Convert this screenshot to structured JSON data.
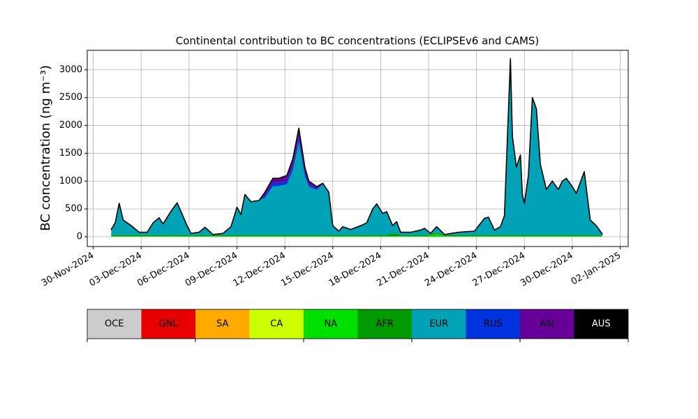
{
  "chart_data": {
    "type": "stacked_area",
    "title": "Continental contribution to BC concentrations (ECLIPSEv6 and CAMS)",
    "y_label": "BC concentration (ng m⁻³)",
    "xlim": [
      "2024-11-29T15:00",
      "2025-01-02T12:00"
    ],
    "ylim": [
      -176,
      3350
    ],
    "grid": true,
    "xticks": [
      {
        "value": "2024-11-30T00:00",
        "label": "30-Nov-2024"
      },
      {
        "value": "2024-12-03T00:00",
        "label": "03-Dec-2024"
      },
      {
        "value": "2024-12-06T00:00",
        "label": "06-Dec-2024"
      },
      {
        "value": "2024-12-09T00:00",
        "label": "09-Dec-2024"
      },
      {
        "value": "2024-12-12T00:00",
        "label": "12-Dec-2024"
      },
      {
        "value": "2024-12-15T00:00",
        "label": "15-Dec-2024"
      },
      {
        "value": "2024-12-18T00:00",
        "label": "18-Dec-2024"
      },
      {
        "value": "2024-12-21T00:00",
        "label": "21-Dec-2024"
      },
      {
        "value": "2024-12-24T00:00",
        "label": "24-Dec-2024"
      },
      {
        "value": "2024-12-27T00:00",
        "label": "27-Dec-2024"
      },
      {
        "value": "2024-12-30T00:00",
        "label": "30-Dec-2024"
      },
      {
        "value": "2025-01-02T00:00",
        "label": "02-Jan-2025"
      }
    ],
    "yticks": [
      0,
      500,
      1000,
      1500,
      2000,
      2500,
      3000
    ],
    "x": [
      "2024-12-01T03:00",
      "2024-12-01T09:00",
      "2024-12-01T15:00",
      "2024-12-01T21:00",
      "2024-12-02T09:00",
      "2024-12-02T21:00",
      "2024-12-03T09:00",
      "2024-12-03T18:00",
      "2024-12-04T03:00",
      "2024-12-04T09:00",
      "2024-12-04T21:00",
      "2024-12-05T06:00",
      "2024-12-05T12:00",
      "2024-12-05T21:00",
      "2024-12-06T03:00",
      "2024-12-06T15:00",
      "2024-12-07T00:00",
      "2024-12-07T12:00",
      "2024-12-08T03:00",
      "2024-12-08T15:00",
      "2024-12-09T00:00",
      "2024-12-09T06:00",
      "2024-12-09T12:00",
      "2024-12-09T21:00",
      "2024-12-10T09:00",
      "2024-12-10T18:00",
      "2024-12-11T06:00",
      "2024-12-11T15:00",
      "2024-12-12T03:00",
      "2024-12-12T12:00",
      "2024-12-12T21:00",
      "2024-12-13T06:00",
      "2024-12-13T12:00",
      "2024-12-14T00:00",
      "2024-12-14T09:00",
      "2024-12-14T18:00",
      "2024-12-15T00:00",
      "2024-12-15T09:00",
      "2024-12-15T15:00",
      "2024-12-16T03:00",
      "2024-12-16T18:00",
      "2024-12-17T03:00",
      "2024-12-17T12:00",
      "2024-12-17T18:00",
      "2024-12-18T03:00",
      "2024-12-18T09:00",
      "2024-12-18T18:00",
      "2024-12-19T00:00",
      "2024-12-19T06:00",
      "2024-12-19T21:00",
      "2024-12-20T12:00",
      "2024-12-20T18:00",
      "2024-12-21T03:00",
      "2024-12-21T12:00",
      "2024-12-22T00:00",
      "2024-12-22T21:00",
      "2024-12-23T21:00",
      "2024-12-24T12:00",
      "2024-12-24T18:00",
      "2024-12-25T03:00",
      "2024-12-25T12:00",
      "2024-12-25T18:00",
      "2024-12-26T03:00",
      "2024-12-26T06:00",
      "2024-12-26T12:00",
      "2024-12-26T18:00",
      "2024-12-26T21:00",
      "2024-12-27T00:00",
      "2024-12-27T06:00",
      "2024-12-27T12:00",
      "2024-12-27T18:00",
      "2024-12-28T00:00",
      "2024-12-28T09:00",
      "2024-12-28T18:00",
      "2024-12-29T00:00",
      "2024-12-29T03:00",
      "2024-12-29T09:00",
      "2024-12-29T15:00",
      "2024-12-30T00:00",
      "2024-12-30T06:00",
      "2024-12-30T18:00",
      "2024-12-31T03:00",
      "2024-12-31T12:00",
      "2024-12-31T21:00"
    ],
    "series": [
      {
        "name": "OCE",
        "color": "#cccccc",
        "values": [
          0,
          0,
          0,
          0,
          0,
          0,
          0,
          0,
          0,
          0,
          0,
          0,
          0,
          0,
          0,
          0,
          0,
          0,
          0,
          0,
          0,
          0,
          0,
          0,
          0,
          0,
          0,
          0,
          0,
          0,
          0,
          0,
          0,
          0,
          0,
          0,
          0,
          0,
          0,
          0,
          0,
          0,
          0,
          0,
          0,
          0,
          0,
          0,
          0,
          0,
          0,
          0,
          0,
          0,
          0,
          0,
          0,
          0,
          0,
          0,
          0,
          0,
          0,
          0,
          0,
          0,
          0,
          0,
          0,
          0,
          0,
          0,
          0,
          0,
          0,
          0,
          0,
          0,
          0,
          0,
          0,
          0,
          0,
          0
        ]
      },
      {
        "name": "GNL",
        "color": "#e60000",
        "values": [
          0,
          0,
          0,
          0,
          0,
          0,
          0,
          0,
          0,
          0,
          0,
          0,
          0,
          0,
          0,
          0,
          0,
          0,
          0,
          0,
          0,
          0,
          0,
          0,
          0,
          0,
          0,
          0,
          0,
          0,
          0,
          0,
          0,
          0,
          0,
          0,
          0,
          0,
          0,
          0,
          0,
          0,
          0,
          0,
          0,
          0,
          0,
          0,
          0,
          0,
          0,
          0,
          0,
          0,
          0,
          0,
          0,
          0,
          0,
          0,
          0,
          0,
          0,
          0,
          0,
          0,
          0,
          0,
          0,
          0,
          0,
          0,
          0,
          0,
          0,
          0,
          0,
          0,
          0,
          0,
          0,
          0,
          0,
          0
        ]
      },
      {
        "name": "SA",
        "color": "#ffaa00",
        "values": [
          0,
          0,
          0,
          0,
          0,
          0,
          0,
          0,
          0,
          0,
          0,
          0,
          0,
          0,
          0,
          0,
          0,
          0,
          0,
          0,
          0,
          0,
          0,
          0,
          0,
          0,
          0,
          0,
          0,
          0,
          0,
          0,
          0,
          0,
          0,
          0,
          0,
          0,
          0,
          0,
          0,
          0,
          0,
          0,
          0,
          0,
          0,
          0,
          0,
          0,
          0,
          0,
          0,
          0,
          0,
          0,
          0,
          0,
          0,
          0,
          0,
          0,
          0,
          0,
          0,
          0,
          0,
          0,
          0,
          0,
          0,
          0,
          0,
          0,
          0,
          0,
          0,
          0,
          0,
          0,
          0,
          0,
          0,
          0
        ]
      },
      {
        "name": "CA",
        "color": "#ccff00",
        "values": [
          0,
          0,
          0,
          0,
          0,
          0,
          0,
          0,
          0,
          0,
          0,
          0,
          0,
          0,
          0,
          0,
          0,
          0,
          0,
          0,
          0,
          0,
          0,
          0,
          0,
          0,
          0,
          0,
          0,
          0,
          0,
          0,
          0,
          0,
          0,
          0,
          0,
          0,
          0,
          0,
          0,
          0,
          0,
          0,
          0,
          0,
          0,
          0,
          0,
          0,
          0,
          0,
          0,
          0,
          0,
          0,
          0,
          0,
          0,
          0,
          0,
          0,
          0,
          0,
          0,
          0,
          0,
          0,
          0,
          0,
          0,
          0,
          0,
          0,
          0,
          0,
          0,
          0,
          0,
          0,
          0,
          0,
          0,
          0
        ]
      },
      {
        "name": "NA",
        "color": "#00e000",
        "values": [
          10,
          10,
          10,
          10,
          10,
          10,
          10,
          10,
          10,
          10,
          10,
          10,
          10,
          10,
          10,
          10,
          10,
          10,
          10,
          10,
          10,
          10,
          10,
          10,
          10,
          10,
          10,
          10,
          10,
          10,
          10,
          10,
          10,
          10,
          10,
          10,
          10,
          10,
          10,
          10,
          10,
          10,
          10,
          10,
          10,
          10,
          10,
          10,
          10,
          10,
          10,
          10,
          30,
          50,
          10,
          10,
          10,
          10,
          10,
          10,
          10,
          10,
          10,
          10,
          10,
          10,
          10,
          10,
          10,
          10,
          10,
          10,
          10,
          10,
          10,
          10,
          10,
          10,
          10,
          10,
          10,
          10,
          10,
          10
        ]
      },
      {
        "name": "AFR",
        "color": "#009900",
        "values": [
          20,
          20,
          20,
          20,
          20,
          20,
          20,
          20,
          20,
          20,
          20,
          20,
          20,
          20,
          20,
          20,
          20,
          20,
          20,
          20,
          20,
          20,
          20,
          20,
          20,
          20,
          20,
          20,
          20,
          20,
          20,
          20,
          20,
          20,
          20,
          20,
          20,
          20,
          20,
          20,
          20,
          20,
          20,
          20,
          20,
          20,
          50,
          50,
          20,
          20,
          20,
          20,
          20,
          20,
          20,
          20,
          20,
          20,
          20,
          20,
          20,
          20,
          20,
          20,
          20,
          20,
          20,
          20,
          20,
          20,
          20,
          20,
          20,
          20,
          20,
          20,
          20,
          20,
          20,
          20,
          20,
          20,
          20,
          20
        ]
      },
      {
        "name": "EUR",
        "color": "#00a3b5",
        "values": [
          100,
          220,
          570,
          270,
          170,
          50,
          50,
          220,
          310,
          200,
          430,
          580,
          420,
          170,
          30,
          50,
          140,
          10,
          30,
          150,
          500,
          370,
          730,
          600,
          620,
          670,
          880,
          880,
          910,
          1170,
          1670,
          1060,
          870,
          810,
          910,
          770,
          170,
          70,
          150,
          100,
          170,
          220,
          470,
          560,
          390,
          420,
          140,
          210,
          50,
          50,
          90,
          120,
          10,
          110,
          10,
          50,
          70,
          300,
          320,
          90,
          150,
          350,
          3170,
          1770,
          1220,
          1440,
          720,
          570,
          1070,
          2470,
          2270,
          1270,
          820,
          970,
          870,
          820,
          970,
          1020,
          870,
          750,
          1140,
          270,
          170,
          20
        ]
      },
      {
        "name": "RUS",
        "color": "#0033dd",
        "values": [
          0,
          0,
          0,
          0,
          0,
          0,
          0,
          0,
          0,
          0,
          0,
          0,
          0,
          0,
          0,
          0,
          0,
          0,
          0,
          0,
          0,
          0,
          0,
          0,
          0,
          40,
          60,
          60,
          60,
          80,
          100,
          60,
          40,
          20,
          0,
          0,
          0,
          0,
          0,
          0,
          0,
          0,
          0,
          0,
          0,
          0,
          0,
          0,
          0,
          0,
          0,
          0,
          0,
          0,
          0,
          0,
          0,
          0,
          0,
          0,
          0,
          0,
          0,
          0,
          0,
          0,
          0,
          0,
          0,
          0,
          0,
          0,
          0,
          0,
          0,
          0,
          0,
          0,
          0,
          0,
          0,
          0,
          0,
          0
        ]
      },
      {
        "name": "ASI",
        "color": "#660099",
        "values": [
          0,
          0,
          0,
          0,
          0,
          0,
          0,
          0,
          0,
          0,
          0,
          0,
          0,
          0,
          0,
          0,
          0,
          0,
          0,
          0,
          0,
          0,
          0,
          0,
          0,
          60,
          80,
          80,
          100,
          120,
          150,
          100,
          60,
          40,
          20,
          0,
          0,
          0,
          0,
          0,
          0,
          0,
          0,
          0,
          0,
          0,
          0,
          0,
          0,
          0,
          0,
          0,
          0,
          0,
          0,
          0,
          0,
          0,
          0,
          0,
          0,
          0,
          0,
          0,
          0,
          0,
          0,
          0,
          0,
          0,
          0,
          0,
          0,
          0,
          0,
          0,
          0,
          0,
          0,
          0,
          0,
          0,
          0,
          0
        ]
      },
      {
        "name": "AUS",
        "color": "#000000",
        "values": [
          0,
          0,
          0,
          0,
          0,
          0,
          0,
          0,
          0,
          0,
          0,
          0,
          0,
          0,
          0,
          0,
          0,
          0,
          0,
          0,
          0,
          0,
          0,
          0,
          0,
          0,
          0,
          0,
          0,
          0,
          0,
          0,
          0,
          0,
          0,
          0,
          0,
          0,
          0,
          0,
          0,
          0,
          0,
          0,
          0,
          0,
          0,
          0,
          0,
          0,
          0,
          0,
          0,
          0,
          0,
          0,
          0,
          0,
          0,
          0,
          0,
          0,
          0,
          0,
          0,
          0,
          0,
          0,
          0,
          0,
          0,
          0,
          0,
          0,
          0,
          0,
          0,
          0,
          0,
          0,
          0,
          0,
          0,
          0
        ]
      }
    ]
  }
}
